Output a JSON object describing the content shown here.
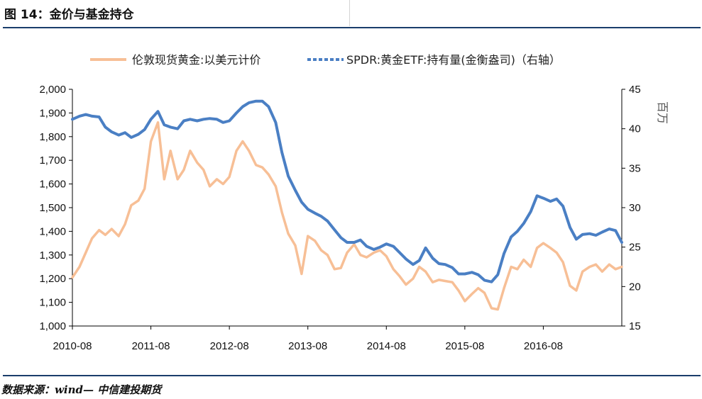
{
  "header": {
    "title": "图 14：金价与基金持仓"
  },
  "footer": {
    "source": "数据来源：wind— 中信建投期货"
  },
  "chart_data": {
    "type": "line",
    "title": "图 14：金价与基金持仓",
    "categories": [
      "2010-08",
      "2011-08",
      "2012-08",
      "2013-08",
      "2014-08",
      "2015-08",
      "2016-08"
    ],
    "y_left": {
      "range": [
        1000,
        2000
      ],
      "ticks": [
        "1,000",
        "1,100",
        "1,200",
        "1,300",
        "1,400",
        "1,500",
        "1,600",
        "1,700",
        "1,800",
        "1,900",
        "2,000"
      ]
    },
    "y_right": {
      "range": [
        15,
        45
      ],
      "ticks": [
        "15",
        "20",
        "25",
        "30",
        "35",
        "40",
        "45"
      ],
      "unit_label": "百万"
    },
    "legend_position": "top",
    "series": [
      {
        "name": "伦敦现货黄金:以美元计价",
        "axis": "left",
        "color": "#f7bf96",
        "points": [
          [
            2010.58,
            1205
          ],
          [
            2010.67,
            1250
          ],
          [
            2010.75,
            1310
          ],
          [
            2010.83,
            1370
          ],
          [
            2010.92,
            1405
          ],
          [
            2011.0,
            1385
          ],
          [
            2011.08,
            1410
          ],
          [
            2011.17,
            1380
          ],
          [
            2011.25,
            1430
          ],
          [
            2011.33,
            1510
          ],
          [
            2011.42,
            1530
          ],
          [
            2011.5,
            1580
          ],
          [
            2011.58,
            1780
          ],
          [
            2011.67,
            1860
          ],
          [
            2011.75,
            1620
          ],
          [
            2011.83,
            1740
          ],
          [
            2011.92,
            1620
          ],
          [
            2012.0,
            1660
          ],
          [
            2012.08,
            1740
          ],
          [
            2012.17,
            1690
          ],
          [
            2012.25,
            1660
          ],
          [
            2012.33,
            1590
          ],
          [
            2012.42,
            1620
          ],
          [
            2012.5,
            1600
          ],
          [
            2012.58,
            1630
          ],
          [
            2012.67,
            1740
          ],
          [
            2012.75,
            1780
          ],
          [
            2012.83,
            1740
          ],
          [
            2012.92,
            1680
          ],
          [
            2013.0,
            1670
          ],
          [
            2013.08,
            1640
          ],
          [
            2013.17,
            1590
          ],
          [
            2013.25,
            1480
          ],
          [
            2013.33,
            1390
          ],
          [
            2013.42,
            1340
          ],
          [
            2013.5,
            1220
          ],
          [
            2013.58,
            1380
          ],
          [
            2013.67,
            1360
          ],
          [
            2013.75,
            1320
          ],
          [
            2013.83,
            1300
          ],
          [
            2013.92,
            1240
          ],
          [
            2014.0,
            1245
          ],
          [
            2014.08,
            1310
          ],
          [
            2014.17,
            1345
          ],
          [
            2014.25,
            1300
          ],
          [
            2014.33,
            1290
          ],
          [
            2014.42,
            1310
          ],
          [
            2014.5,
            1320
          ],
          [
            2014.58,
            1295
          ],
          [
            2014.67,
            1240
          ],
          [
            2014.75,
            1210
          ],
          [
            2014.83,
            1175
          ],
          [
            2014.92,
            1200
          ],
          [
            2015.0,
            1250
          ],
          [
            2015.08,
            1230
          ],
          [
            2015.17,
            1185
          ],
          [
            2015.25,
            1195
          ],
          [
            2015.33,
            1190
          ],
          [
            2015.42,
            1185
          ],
          [
            2015.5,
            1150
          ],
          [
            2015.58,
            1105
          ],
          [
            2015.67,
            1135
          ],
          [
            2015.75,
            1160
          ],
          [
            2015.83,
            1140
          ],
          [
            2015.92,
            1075
          ],
          [
            2016.0,
            1070
          ],
          [
            2016.08,
            1160
          ],
          [
            2016.17,
            1250
          ],
          [
            2016.25,
            1240
          ],
          [
            2016.33,
            1280
          ],
          [
            2016.42,
            1250
          ],
          [
            2016.5,
            1330
          ],
          [
            2016.58,
            1350
          ],
          [
            2016.67,
            1330
          ],
          [
            2016.75,
            1310
          ],
          [
            2016.83,
            1270
          ],
          [
            2016.92,
            1170
          ],
          [
            2017.0,
            1150
          ],
          [
            2017.08,
            1230
          ],
          [
            2017.17,
            1250
          ],
          [
            2017.25,
            1260
          ],
          [
            2017.33,
            1230
          ],
          [
            2017.42,
            1260
          ],
          [
            2017.5,
            1240
          ],
          [
            2017.58,
            1250
          ]
        ]
      },
      {
        "name": "SPDR:黄金ETF:持有量(金衡盎司)（右轴）",
        "axis": "right",
        "color": "#4a7fc4",
        "points": [
          [
            2010.58,
            41.2
          ],
          [
            2010.67,
            41.6
          ],
          [
            2010.75,
            41.8
          ],
          [
            2010.83,
            41.6
          ],
          [
            2010.92,
            41.5
          ],
          [
            2011.0,
            40.2
          ],
          [
            2011.08,
            39.6
          ],
          [
            2011.17,
            39.2
          ],
          [
            2011.25,
            39.5
          ],
          [
            2011.33,
            38.9
          ],
          [
            2011.42,
            39.3
          ],
          [
            2011.5,
            39.9
          ],
          [
            2011.58,
            41.2
          ],
          [
            2011.67,
            42.2
          ],
          [
            2011.75,
            40.5
          ],
          [
            2011.83,
            40.2
          ],
          [
            2011.92,
            40.0
          ],
          [
            2012.0,
            41.0
          ],
          [
            2012.08,
            41.2
          ],
          [
            2012.17,
            41.0
          ],
          [
            2012.25,
            41.2
          ],
          [
            2012.33,
            41.3
          ],
          [
            2012.42,
            41.2
          ],
          [
            2012.5,
            40.8
          ],
          [
            2012.58,
            41.0
          ],
          [
            2012.67,
            42.0
          ],
          [
            2012.75,
            42.8
          ],
          [
            2012.83,
            43.3
          ],
          [
            2012.92,
            43.5
          ],
          [
            2013.0,
            43.5
          ],
          [
            2013.08,
            42.8
          ],
          [
            2013.17,
            40.8
          ],
          [
            2013.25,
            37.0
          ],
          [
            2013.33,
            34.0
          ],
          [
            2013.42,
            32.2
          ],
          [
            2013.5,
            30.7
          ],
          [
            2013.58,
            29.8
          ],
          [
            2013.67,
            29.3
          ],
          [
            2013.75,
            28.9
          ],
          [
            2013.83,
            28.3
          ],
          [
            2013.92,
            27.2
          ],
          [
            2014.0,
            26.2
          ],
          [
            2014.08,
            25.6
          ],
          [
            2014.17,
            25.6
          ],
          [
            2014.25,
            25.9
          ],
          [
            2014.33,
            25.1
          ],
          [
            2014.42,
            24.7
          ],
          [
            2014.5,
            25.0
          ],
          [
            2014.58,
            25.4
          ],
          [
            2014.67,
            25.1
          ],
          [
            2014.75,
            24.3
          ],
          [
            2014.83,
            23.5
          ],
          [
            2014.92,
            22.8
          ],
          [
            2015.0,
            23.3
          ],
          [
            2015.08,
            24.9
          ],
          [
            2015.17,
            23.6
          ],
          [
            2015.25,
            22.9
          ],
          [
            2015.33,
            22.8
          ],
          [
            2015.42,
            22.4
          ],
          [
            2015.5,
            21.6
          ],
          [
            2015.58,
            21.6
          ],
          [
            2015.67,
            21.8
          ],
          [
            2015.75,
            21.5
          ],
          [
            2015.83,
            20.8
          ],
          [
            2015.92,
            20.6
          ],
          [
            2016.0,
            21.5
          ],
          [
            2016.08,
            24.2
          ],
          [
            2016.17,
            26.3
          ],
          [
            2016.25,
            27.0
          ],
          [
            2016.33,
            28.0
          ],
          [
            2016.42,
            29.5
          ],
          [
            2016.5,
            31.5
          ],
          [
            2016.58,
            31.2
          ],
          [
            2016.67,
            30.8
          ],
          [
            2016.75,
            31.1
          ],
          [
            2016.83,
            30.2
          ],
          [
            2016.92,
            27.5
          ],
          [
            2017.0,
            26.0
          ],
          [
            2017.08,
            26.6
          ],
          [
            2017.17,
            26.7
          ],
          [
            2017.25,
            26.5
          ],
          [
            2017.33,
            26.9
          ],
          [
            2017.42,
            27.3
          ],
          [
            2017.5,
            27.1
          ],
          [
            2017.58,
            25.6
          ]
        ]
      }
    ]
  }
}
